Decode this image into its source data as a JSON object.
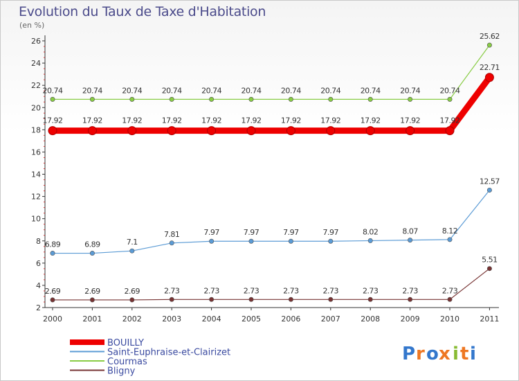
{
  "header": {
    "title": "Evolution du Taux de Taxe d'Habitation",
    "subtitle": "(en %)"
  },
  "brand": {
    "logo_text": "Proxiti"
  },
  "colors": {
    "bouilly": "#ee0000",
    "saint": "#5b9bd5",
    "courmas": "#88cc44",
    "bligny": "#773333",
    "axis": "#333333",
    "grid_tick": "#cc3333"
  },
  "chart_data": {
    "type": "line",
    "title": "Evolution du Taux de Taxe d'Habitation",
    "subtitle": "(en %)",
    "x": [
      "2000",
      "2001",
      "2002",
      "2003",
      "2004",
      "2005",
      "2006",
      "2007",
      "2008",
      "2009",
      "2010",
      "2011"
    ],
    "ylim": [
      2,
      26
    ],
    "yticks": [
      2,
      4,
      6,
      8,
      10,
      12,
      14,
      16,
      18,
      20,
      22,
      24,
      26
    ],
    "grid": false,
    "legend": "bottom-left",
    "series": [
      {
        "name": "BOUILLY",
        "color": "#ee0000",
        "values": [
          17.92,
          17.92,
          17.92,
          17.92,
          17.92,
          17.92,
          17.92,
          17.92,
          17.92,
          17.92,
          17.92,
          22.71
        ],
        "labels": [
          "17.92",
          "17.92",
          "17.92",
          "17.92",
          "17.92",
          "17.92",
          "17.92",
          "17.92",
          "17.92",
          "17.92",
          "17.92",
          "22.71"
        ],
        "thick": true
      },
      {
        "name": "Saint-Euphraise-et-Clairizet",
        "color": "#5b9bd5",
        "values": [
          6.89,
          6.89,
          7.1,
          7.81,
          7.97,
          7.97,
          7.97,
          7.97,
          8.02,
          8.07,
          8.12,
          12.57
        ],
        "labels": [
          "6.89",
          "6.89",
          "7.1",
          "7.81",
          "7.97",
          "7.97",
          "7.97",
          "7.97",
          "8.02",
          "8.07",
          "8.12",
          "12.57"
        ],
        "thick": false
      },
      {
        "name": "Courmas",
        "color": "#88cc44",
        "values": [
          20.74,
          20.74,
          20.74,
          20.74,
          20.74,
          20.74,
          20.74,
          20.74,
          20.74,
          20.74,
          20.74,
          25.62
        ],
        "labels": [
          "20.74",
          "20.74",
          "20.74",
          "20.74",
          "20.74",
          "20.74",
          "20.74",
          "20.74",
          "20.74",
          "20.74",
          "20.74",
          "25.62"
        ],
        "thick": false
      },
      {
        "name": "Bligny",
        "color": "#773333",
        "values": [
          2.69,
          2.69,
          2.69,
          2.73,
          2.73,
          2.73,
          2.73,
          2.73,
          2.73,
          2.73,
          2.73,
          5.51
        ],
        "labels": [
          "2.69",
          "2.69",
          "2.69",
          "2.73",
          "2.73",
          "2.73",
          "2.73",
          "2.73",
          "2.73",
          "2.73",
          "2.73",
          "5.51"
        ],
        "thick": false
      }
    ]
  }
}
